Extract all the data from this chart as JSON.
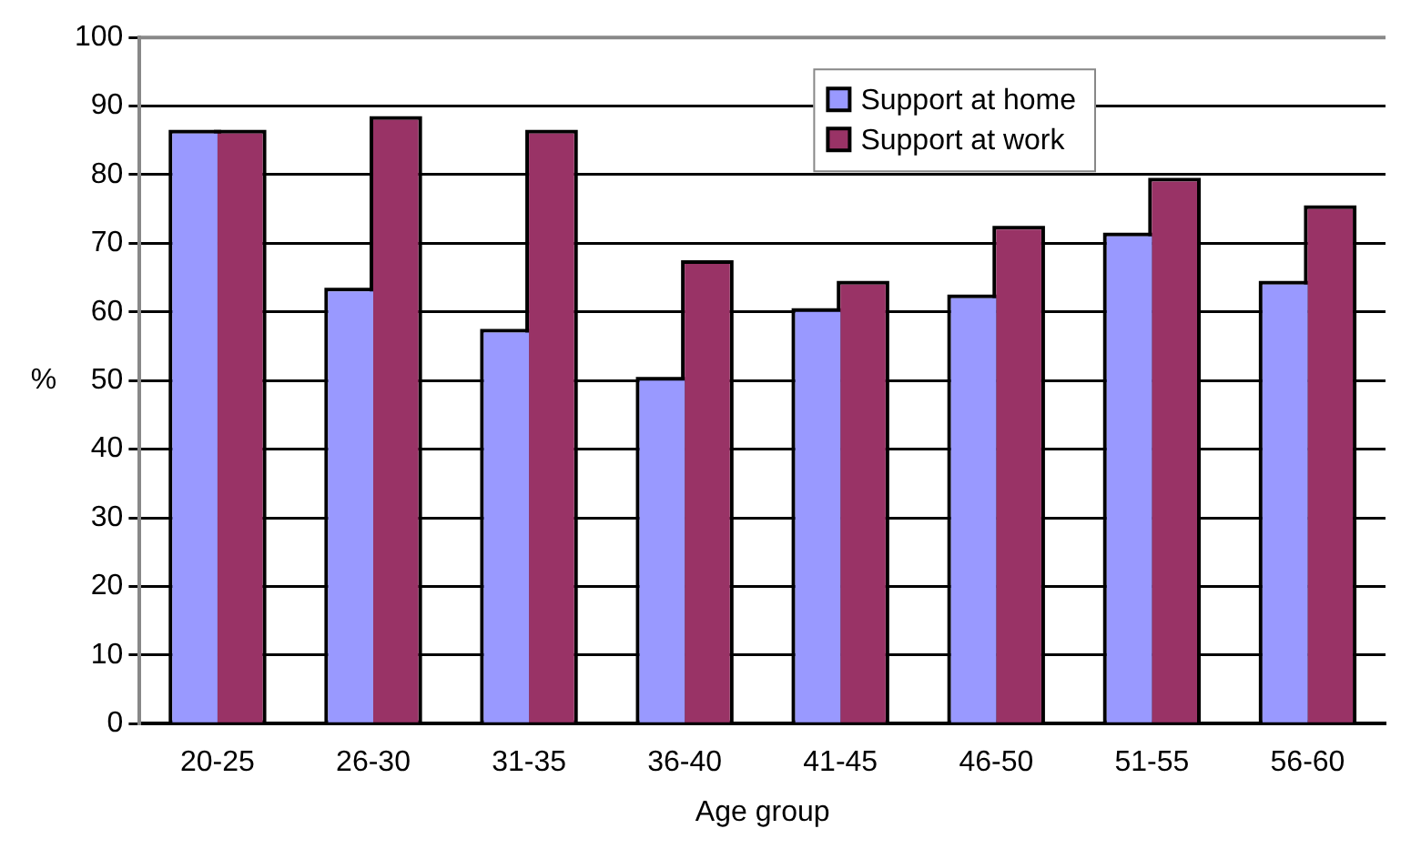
{
  "chart_data": {
    "type": "bar",
    "xlabel": "Age group",
    "ylabel": "%",
    "categories": [
      "20-25",
      "26-30",
      "31-35",
      "36-40",
      "41-45",
      "46-50",
      "51-55",
      "56-60"
    ],
    "series": [
      {
        "name": "Support at home",
        "color": "#9999ff",
        "values": [
          86,
          63,
          57,
          50,
          60,
          62,
          71,
          64
        ]
      },
      {
        "name": "Support at work",
        "color": "#993366",
        "values": [
          86,
          88,
          86,
          67,
          64,
          72,
          79,
          75
        ]
      }
    ],
    "ylim": [
      0,
      100
    ],
    "yticks": [
      0,
      10,
      20,
      30,
      40,
      50,
      60,
      70,
      80,
      90,
      100
    ],
    "grid": "y",
    "legend": "top"
  }
}
